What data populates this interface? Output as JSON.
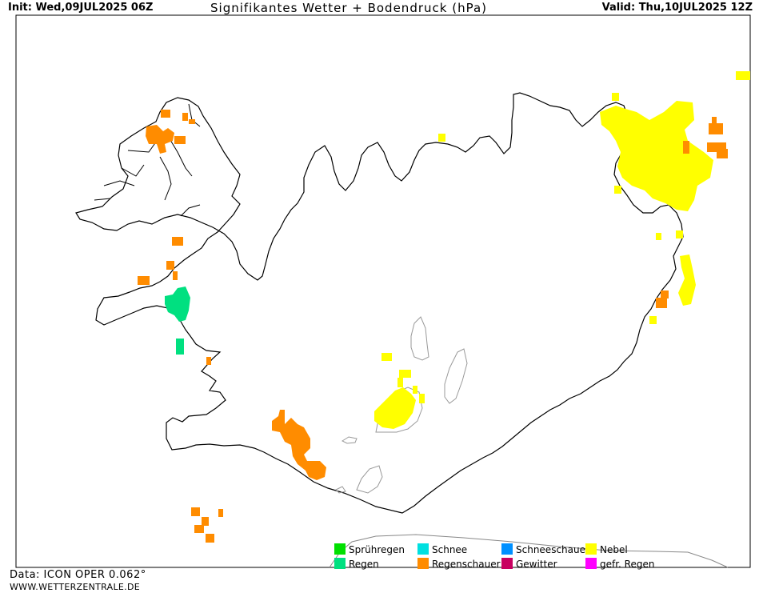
{
  "header": {
    "init": "Init: Wed,09JUL2025 06Z",
    "title": "Signifikantes Wetter +  Bodendruck (hPa)",
    "valid": "Valid: Thu,10JUL2025 12Z"
  },
  "legend": [
    {
      "label": "Sprühregen",
      "color": "#00e000"
    },
    {
      "label": "Regen",
      "color": "#00e080"
    },
    {
      "label": "Schnee",
      "color": "#00e0e0"
    },
    {
      "label": "Regenschauer",
      "color": "#ff8c00"
    },
    {
      "label": "Schneeschauer",
      "color": "#0090ff"
    },
    {
      "label": "Gewitter",
      "color": "#c80060"
    },
    {
      "label": "Nebel",
      "color": "#ffff00"
    },
    {
      "label": "gefr. Regen",
      "color": "#ff00ff"
    }
  ],
  "footer": {
    "model": "Data: ICON OPER 0.062°",
    "url": "WWW.WETTERZENTRALE.DE"
  },
  "colors": {
    "fog": "#ffff00",
    "showers": "#ff8c00",
    "rain": "#00e080",
    "coast": "#000000",
    "glacier": "#999999"
  }
}
